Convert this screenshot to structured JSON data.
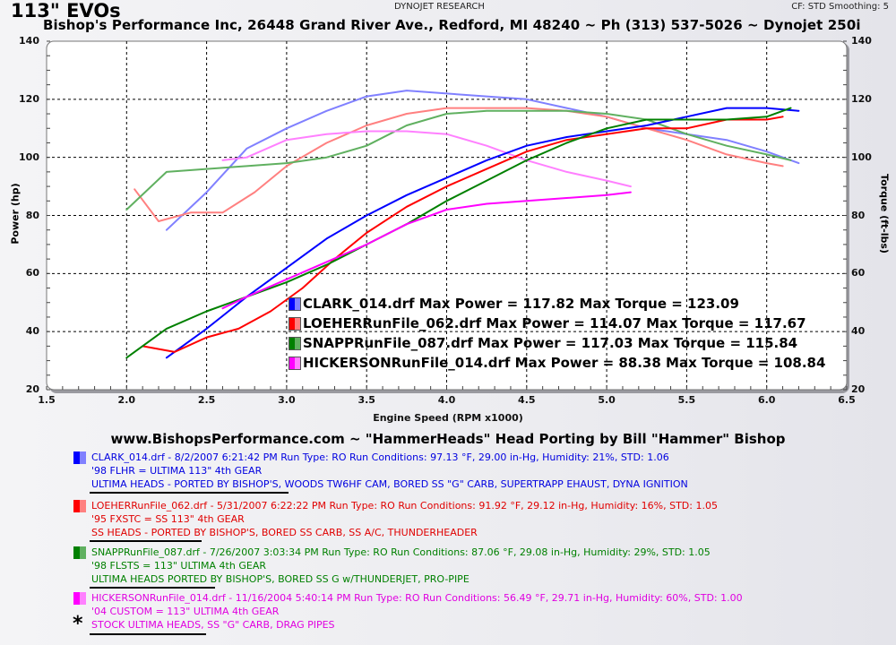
{
  "header": {
    "title": "113\" EVOs",
    "subtitle": "Bishop's Performance Inc, 26448 Grand River Ave., Redford, MI 48240 ~ Ph (313) 537-5026  ~  Dynojet 250i",
    "center_label": "DYNOJET RESEARCH",
    "right_label": "CF: STD  Smoothing: 5"
  },
  "chart_data": {
    "type": "line",
    "title": "113\" EVOs",
    "xlabel": "Engine Speed (RPM x1000)",
    "ylabel": "Power (hp)",
    "ylabel_right": "Torque (ft-lbs)",
    "xlim": [
      1.5,
      6.5
    ],
    "ylim": [
      20,
      140
    ],
    "ylim_right": [
      20,
      140
    ],
    "x_ticks": [
      "1.5",
      "2.0",
      "2.5",
      "3.0",
      "3.5",
      "4.0",
      "4.5",
      "5.0",
      "5.5",
      "6.0",
      "6.5"
    ],
    "y_ticks": [
      "20",
      "40",
      "60",
      "80",
      "100",
      "120",
      "140"
    ],
    "y_ticks_right": [
      "20",
      "40",
      "60",
      "80",
      "100",
      "120",
      "140"
    ],
    "grid": true,
    "legend_position": "inside-lower-right",
    "series": [
      {
        "name": "CLARK_014.drf",
        "metric": "power",
        "color": "#0000ff",
        "x": [
          2.25,
          2.5,
          2.75,
          3.0,
          3.25,
          3.5,
          3.75,
          4.0,
          4.25,
          4.5,
          4.75,
          5.0,
          5.25,
          5.5,
          5.75,
          6.0,
          6.2
        ],
        "values": [
          31,
          41,
          52,
          62,
          72,
          80,
          87,
          93,
          99,
          104,
          107,
          109,
          111,
          114,
          117,
          117,
          116
        ]
      },
      {
        "name": "LOEHERRunFile_062.drf",
        "metric": "power",
        "color": "#ff0000",
        "x": [
          2.1,
          2.3,
          2.5,
          2.7,
          2.9,
          3.1,
          3.3,
          3.5,
          3.75,
          4.0,
          4.25,
          4.5,
          4.75,
          5.0,
          5.25,
          5.5,
          5.75,
          6.0,
          6.1
        ],
        "values": [
          35,
          33,
          38,
          41,
          47,
          55,
          65,
          74,
          83,
          90,
          96,
          102,
          106,
          108,
          110,
          110,
          113,
          113,
          114
        ]
      },
      {
        "name": "SNAPPRunFile_087.drf",
        "metric": "power",
        "color": "#008000",
        "x": [
          2.0,
          2.25,
          2.5,
          2.75,
          3.0,
          3.25,
          3.5,
          3.75,
          4.0,
          4.25,
          4.5,
          4.75,
          5.0,
          5.25,
          5.5,
          5.75,
          6.0,
          6.15
        ],
        "values": [
          31,
          41,
          47,
          52,
          57,
          63,
          70,
          77,
          85,
          92,
          99,
          105,
          110,
          113,
          113,
          113,
          114,
          117
        ]
      },
      {
        "name": "HICKERSONRunFile_014.drf",
        "metric": "power",
        "color": "#ff00ff",
        "x": [
          2.6,
          2.75,
          3.0,
          3.25,
          3.5,
          3.75,
          4.0,
          4.25,
          4.5,
          4.75,
          5.0,
          5.15
        ],
        "values": [
          48,
          52,
          58,
          64,
          70,
          77,
          82,
          84,
          85,
          86,
          87,
          88
        ]
      },
      {
        "name": "CLARK_014.drf",
        "metric": "torque",
        "color": "#8080ff",
        "x": [
          2.25,
          2.5,
          2.75,
          3.0,
          3.25,
          3.5,
          3.75,
          4.0,
          4.25,
          4.5,
          4.75,
          5.0,
          5.25,
          5.5,
          5.75,
          6.0,
          6.2
        ],
        "values": [
          75,
          88,
          103,
          110,
          116,
          121,
          123,
          122,
          121,
          120,
          117,
          114,
          110,
          108,
          106,
          102,
          98
        ]
      },
      {
        "name": "LOEHERRunFile_062.drf",
        "metric": "torque",
        "color": "#ff8080",
        "x": [
          2.05,
          2.2,
          2.4,
          2.6,
          2.8,
          3.0,
          3.25,
          3.5,
          3.75,
          4.0,
          4.25,
          4.5,
          4.75,
          5.0,
          5.25,
          5.5,
          5.75,
          6.0,
          6.1
        ],
        "values": [
          89,
          78,
          81,
          81,
          88,
          97,
          105,
          111,
          115,
          117,
          117,
          117,
          116,
          114,
          110,
          106,
          101,
          98,
          97
        ]
      },
      {
        "name": "SNAPPRunFile_087.drf",
        "metric": "torque",
        "color": "#60b060",
        "x": [
          2.0,
          2.25,
          2.5,
          2.75,
          3.0,
          3.25,
          3.5,
          3.75,
          4.0,
          4.25,
          4.5,
          4.75,
          5.0,
          5.25,
          5.5,
          5.75,
          6.0,
          6.15
        ],
        "values": [
          82,
          95,
          96,
          97,
          98,
          100,
          104,
          111,
          115,
          116,
          116,
          116,
          115,
          113,
          108,
          104,
          101,
          99
        ]
      },
      {
        "name": "HICKERSONRunFile_014.drf",
        "metric": "torque",
        "color": "#ff80ff",
        "x": [
          2.6,
          2.75,
          3.0,
          3.25,
          3.5,
          3.75,
          4.0,
          4.25,
          4.5,
          4.75,
          5.0,
          5.15
        ],
        "values": [
          99,
          100,
          106,
          108,
          109,
          109,
          108,
          104,
          99,
          95,
          92,
          90
        ]
      }
    ]
  },
  "legend": [
    {
      "label": "CLARK_014.drf Max Power = 117.82  Max Torque = 123.09",
      "color": "#0000ff",
      "light": "#8080ff"
    },
    {
      "label": "LOEHERRunFile_062.drf Max Power = 114.07  Max Torque = 117.67",
      "color": "#ff0000",
      "light": "#ff8080"
    },
    {
      "label": "SNAPPRunFile_087.drf Max Power = 117.03  Max Torque = 115.84",
      "color": "#008000",
      "light": "#60b060"
    },
    {
      "label": "HICKERSONRunFile_014.drf Max Power = 88.38  Max Torque = 108.84",
      "color": "#ff00ff",
      "light": "#ff80ff"
    }
  ],
  "banner": "www.BishopsPerformance.com  ~  \"HammerHeads\" Head Porting by Bill \"Hammer\" Bishop",
  "runs": [
    {
      "color": "#0000ff",
      "light": "#8080ff",
      "text_color": "#0000e0",
      "line1": "CLARK_014.drf - 8/2/2007 6:21:42 PM  Run Type: RO  Run Conditions: 97.13 °F, 29.00 in-Hg,  Humidity:  21%, STD: 1.06",
      "line2": "'98 FLHR  =  ULTIMA 113\"          4th GEAR",
      "line3": "ULTIMA HEADS - PORTED BY BISHOP'S, WOODS TW6HF CAM, BORED SS \"G\" CARB, SUPERTRAPP EHAUST, DYNA IGNITION"
    },
    {
      "color": "#ff0000",
      "light": "#ff8080",
      "text_color": "#e00000",
      "line1": "LOEHERRunFile_062.drf - 5/31/2007 6:22:22 PM  Run Type: RO  Run Conditions: 91.92 °F, 29.12 in-Hg,  Humidity:  16%, STD: 1.05",
      "line2": "'95 FXSTC  =  SS 113\"    4th GEAR",
      "line3": "SS HEADS - PORTED BY BISHOP'S, BORED SS CARB, SS A/C, THUNDERHEADER"
    },
    {
      "color": "#008000",
      "light": "#60b060",
      "text_color": "#008000",
      "line1": "SNAPPRunFile_087.drf - 7/26/2007 3:03:34 PM  Run Type: RO  Run Conditions: 87.06 °F, 29.08 in-Hg,  Humidity:  29%, STD: 1.05",
      "line2": "'98 FLSTS  =  113\" ULTIMA       4th GEAR",
      "line3": "ULTIMA HEADS PORTED BY BISHOP'S, BORED SS G w/THUNDERJET, PRO-PIPE"
    },
    {
      "color": "#ff00ff",
      "light": "#ff80ff",
      "text_color": "#e000e0",
      "line1": "HICKERSONRunFile_014.drf - 11/16/2004 5:40:14 PM  Run Type: RO  Run Conditions: 56.49 °F, 29.71 in-Hg,  Humidity:  60%, STD: 1.00",
      "line2": "'04 CUSTOM  =  113\" ULTIMA    4th GEAR",
      "line3": "STOCK ULTIMA HEADS, SS \"G\" CARB, DRAG PIPES"
    }
  ],
  "asterisk": "*"
}
